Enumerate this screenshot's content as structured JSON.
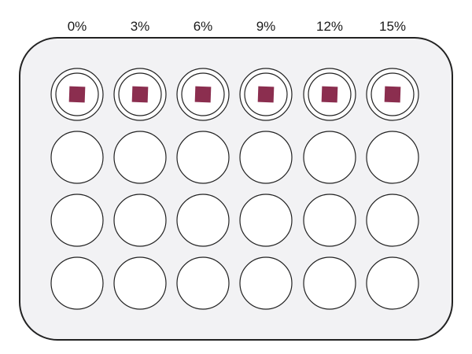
{
  "columns": [
    {
      "label": "0%"
    },
    {
      "label": "3%"
    },
    {
      "label": "6%"
    },
    {
      "label": "9%"
    },
    {
      "label": "12%"
    },
    {
      "label": "15%"
    }
  ],
  "rows": 4,
  "sample_row": 1,
  "colors": {
    "plate_fill": "#f2f2f4",
    "plate_stroke": "#222222",
    "well_fill": "#ffffff",
    "well_stroke": "#222222",
    "sample_fill": "#8b2e4f"
  }
}
